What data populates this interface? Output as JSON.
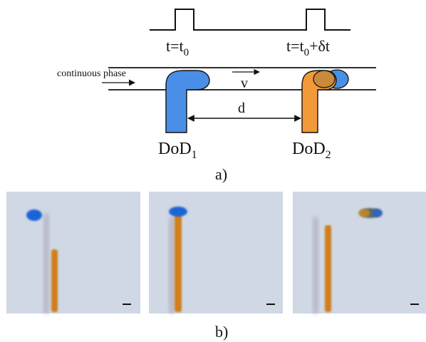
{
  "figure": {
    "panel_a": {
      "label": "a)",
      "time_labels": {
        "first": {
          "base": "t=t",
          "sub": "0"
        },
        "second": {
          "base": "t=t",
          "sub": "0",
          "suffix": "+δt"
        }
      },
      "continuous_phase_label": "continuous phase",
      "velocity_label": "v",
      "distance_label": "d",
      "dod1": {
        "base": "DoD",
        "sub": "1"
      },
      "dod2": {
        "base": "DoD",
        "sub": "2"
      }
    },
    "panel_b": {
      "label": "b)",
      "photos": [
        {
          "id": "photo-1"
        },
        {
          "id": "photo-2"
        },
        {
          "id": "photo-3"
        }
      ]
    },
    "colors": {
      "blue_droplet": "#4a8fe7",
      "orange_droplet": "#f29a3a",
      "photo_background": "#c8d3e0",
      "photo_orange": "#d07f1e",
      "photo_blue": "#1f63d6"
    }
  }
}
